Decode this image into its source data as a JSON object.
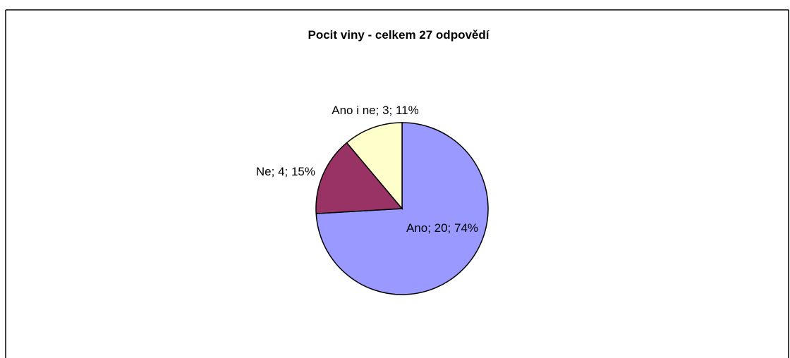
{
  "chart_data": {
    "type": "pie",
    "title": "Pocit viny - celkem 27 odpovědí",
    "categories": [
      "Ano",
      "Ne",
      "Ano i ne"
    ],
    "values": [
      20,
      4,
      3
    ],
    "value_labels": [
      "Ano; 20; 74%",
      "Ne; 4; 15%",
      "Ano i ne; 3; 11%"
    ],
    "colors": [
      "#9999ff",
      "#993366",
      "#ffffcc"
    ]
  }
}
